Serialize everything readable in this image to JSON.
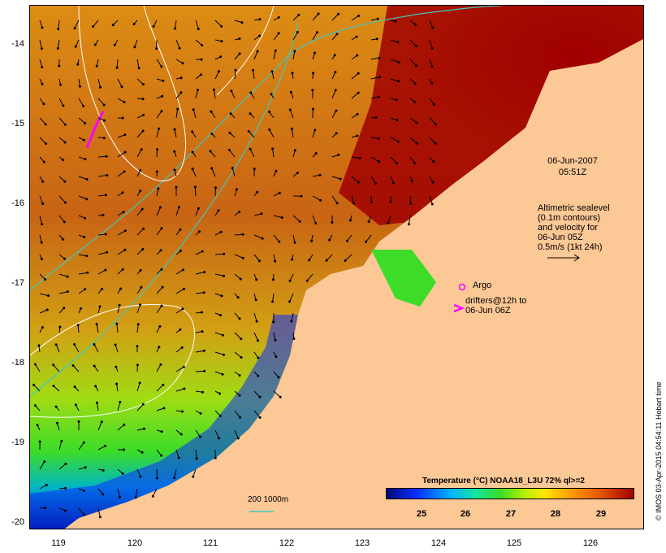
{
  "map": {
    "y_axis_labels": [
      "-14",
      "-15",
      "-16",
      "-17",
      "-18",
      "-19",
      "-20"
    ],
    "x_axis_labels": [
      "119",
      "120",
      "121",
      "122",
      "123",
      "124",
      "125",
      "126"
    ],
    "timestamp_date": "06-Jun-2007",
    "timestamp_time": "05:51Z",
    "legend_lines": [
      "Altimetric sealevel",
      "(0.1m contours)",
      "and velocity for",
      "06-Jun 05Z",
      "0.5m/s (1kt 24h)"
    ],
    "argo_label": "Argo",
    "drifters_lines": [
      "drifters@12h to",
      "06-Jun 06Z"
    ],
    "depth_contour_label": "200  1000m",
    "colorbar_title": "Temperature (°C) NOAA18_L3U 72% ql>=2",
    "colorbar_ticks": [
      "25",
      "26",
      "27",
      "28",
      "29"
    ],
    "credit": "© IMOS 03-Apr-2015 04:54:11 Hobart time",
    "colors": {
      "land": "#fcc896",
      "warm": "#a00000",
      "mid": "#c86414",
      "cool": "#3cdc28",
      "cold": "#000a78",
      "bathymetry": "#40c8c0",
      "sealevel_contour": "#ffffff",
      "drifter": "#ff00ff"
    }
  }
}
